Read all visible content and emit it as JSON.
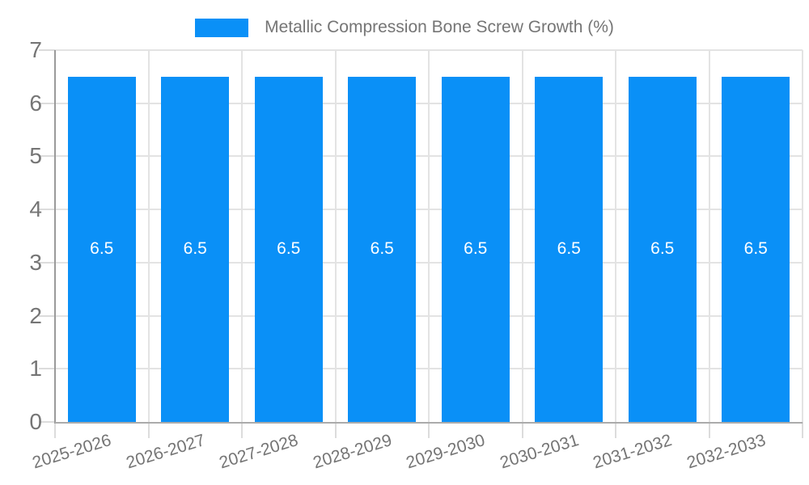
{
  "chart_data": {
    "type": "bar",
    "title": "",
    "categories": [
      "2025-2026",
      "2026-2027",
      "2027-2028",
      "2028-2029",
      "2029-2030",
      "2030-2031",
      "2031-2032",
      "2032-2033"
    ],
    "series": [
      {
        "name": "Metallic Compression Bone Screw Growth (%)",
        "values": [
          6.5,
          6.5,
          6.5,
          6.5,
          6.5,
          6.5,
          6.5,
          6.5
        ]
      }
    ],
    "bar_value_labels": [
      "6.5",
      "6.5",
      "6.5",
      "6.5",
      "6.5",
      "6.5",
      "6.5",
      "6.5"
    ],
    "xlabel": "",
    "ylabel": "",
    "ylim": [
      0,
      7
    ],
    "yticks": [
      0,
      1,
      2,
      3,
      4,
      5,
      6,
      7
    ],
    "grid": true,
    "legend_position": "top",
    "x_label_rotation_deg": -17,
    "colors": {
      "bar": "#0a90f7",
      "bar_value_label": "#ffffff",
      "axis_text": "#757575",
      "legend_text": "#757575",
      "gridline": "#e3e3e3",
      "tick": "#dcdcdc",
      "axis_line_left": "#9a9a9a",
      "axis_line_bottom": "#ababab",
      "background": "#ffffff"
    }
  }
}
